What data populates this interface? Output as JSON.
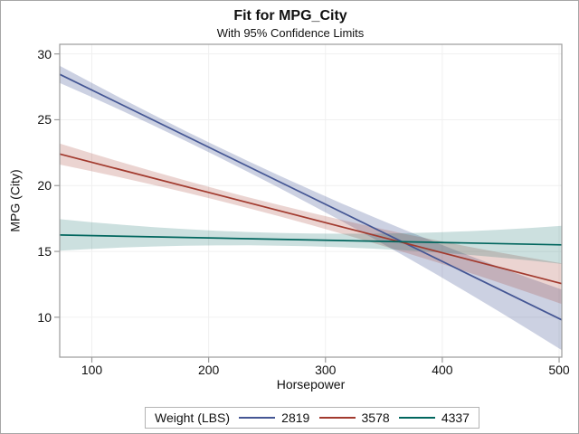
{
  "colors": {
    "background": "#ffffff",
    "figure_border": "#a6a6a6",
    "wall_border": "#9b9b9b",
    "grid": "#f0f0f0",
    "tick": "#9b9b9b",
    "legend_border": "#b3b3b3",
    "text": "#111111"
  },
  "chart_data": {
    "type": "line",
    "title": "Fit for MPG_City",
    "subtitle": "With 95% Confidence Limits",
    "xlabel": "Horsepower",
    "ylabel": "MPG (City)",
    "xlim": [
      72.5,
      502.3
    ],
    "ylim": [
      6.97,
      30.73
    ],
    "x_ticks": [
      100,
      200,
      300,
      400,
      500
    ],
    "y_ticks": [
      10,
      15,
      20,
      25,
      30
    ],
    "grid": true,
    "legend": {
      "title": "Weight (LBS)",
      "position": "bottom"
    },
    "series": [
      {
        "label": "2819",
        "color": "#445694",
        "band_rgba": "rgba(68,86,148,0.27)",
        "x": [
          72.5,
          210,
          502.3
        ],
        "fit": [
          28.45,
          22.48,
          9.8
        ],
        "ci_halfwidth": [
          0.65,
          0.38,
          2.3
        ]
      },
      {
        "label": "3578",
        "color": "#A23A2E",
        "band_rgba": "rgba(162,58,46,0.22)",
        "x": [
          72.5,
          210,
          502.3
        ],
        "fit": [
          22.4,
          19.25,
          12.55
        ],
        "ci_halfwidth": [
          0.8,
          0.42,
          1.55
        ]
      },
      {
        "label": "4337",
        "color": "#01665E",
        "band_rgba": "rgba(1,102,94,0.20)",
        "x": [
          72.5,
          210,
          502.3
        ],
        "fit": [
          16.25,
          16.01,
          15.5
        ],
        "ci_halfwidth": [
          1.2,
          0.55,
          1.45
        ]
      }
    ]
  }
}
